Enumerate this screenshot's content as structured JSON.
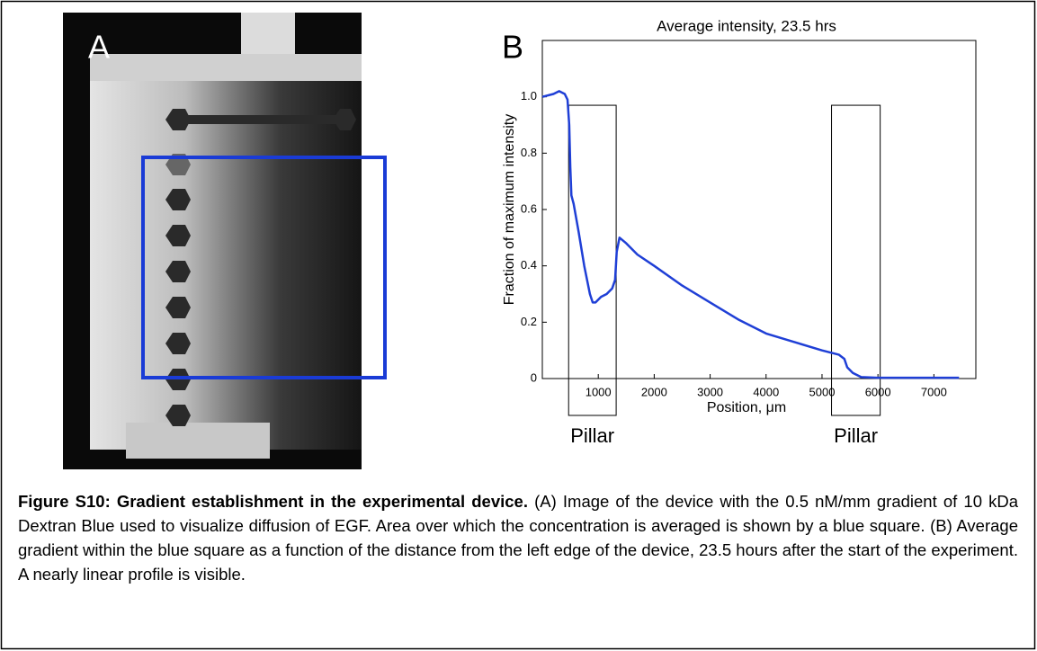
{
  "panel_a": {
    "label": "A"
  },
  "chart_data": {
    "type": "line",
    "panel_label": "B",
    "title": "Average intensity, 23.5 hrs",
    "x_label": "Position, μm",
    "y_label": "Fraction of maximum intensity",
    "x": [
      0,
      200,
      300,
      400,
      450,
      480,
      500,
      520,
      560,
      650,
      750,
      850,
      900,
      950,
      1050,
      1150,
      1250,
      1300,
      1330,
      1380,
      1500,
      1700,
      2000,
      2500,
      3000,
      3500,
      4000,
      4500,
      5000,
      5300,
      5400,
      5450,
      5550,
      5700,
      6000,
      7000,
      7450
    ],
    "values": [
      1.0,
      1.01,
      1.02,
      1.01,
      0.99,
      0.9,
      0.75,
      0.65,
      0.62,
      0.52,
      0.4,
      0.3,
      0.27,
      0.27,
      0.29,
      0.3,
      0.32,
      0.35,
      0.45,
      0.5,
      0.48,
      0.44,
      0.4,
      0.33,
      0.27,
      0.21,
      0.16,
      0.13,
      0.1,
      0.085,
      0.07,
      0.04,
      0.02,
      0.005,
      0.003,
      0.003,
      0.003
    ],
    "color": "#1f3fd6",
    "xlim": [
      0,
      7750
    ],
    "ylim": [
      0,
      1.2
    ],
    "xticks": [
      1000,
      2000,
      3000,
      4000,
      5000,
      6000,
      7000
    ],
    "yticks": [
      0,
      0.2,
      0.4,
      0.6,
      0.8,
      {
        "value": 1,
        "label": "1.0"
      }
    ],
    "annotations": [
      {
        "label": "Pillar",
        "x": [
          470,
          1320
        ],
        "top": 0.97
      },
      {
        "label": "Pillar",
        "x": [
          5170,
          6040
        ],
        "top": 0.97
      }
    ]
  },
  "caption": {
    "title": "Figure S10: Gradient establishment in the experimental device.",
    "text": "(A) Image of the device with the 0.5 nM/mm gradient of 10 kDa Dextran Blue used to visualize diffusion of EGF. Area over which the concentration is averaged is shown by a blue square. (B) Average gradient within the blue square as a function of the distance from the left edge of the device, 23.5 hours after the start of the experiment. A nearly linear profile is visible."
  }
}
